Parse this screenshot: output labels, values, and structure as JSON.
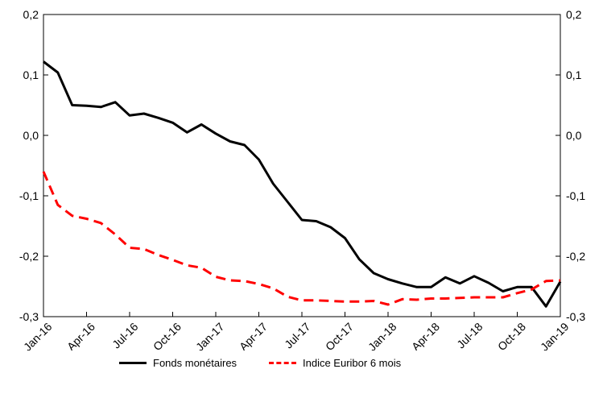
{
  "chart_data": {
    "type": "line",
    "x": [
      "Jan-16",
      "Feb-16",
      "Mar-16",
      "Apr-16",
      "May-16",
      "Jun-16",
      "Jul-16",
      "Aug-16",
      "Sep-16",
      "Oct-16",
      "Nov-16",
      "Dec-16",
      "Jan-17",
      "Feb-17",
      "Mar-17",
      "Apr-17",
      "May-17",
      "Jun-17",
      "Jul-17",
      "Aug-17",
      "Sep-17",
      "Oct-17",
      "Nov-17",
      "Dec-17",
      "Jan-18",
      "Feb-18",
      "Mar-18",
      "Apr-18",
      "May-18",
      "Jun-18",
      "Jul-18",
      "Aug-18",
      "Sep-18",
      "Oct-18",
      "Nov-18",
      "Dec-18",
      "Jan-19"
    ],
    "xticks": [
      "Jan-16",
      "Apr-16",
      "Jul-16",
      "Oct-16",
      "Jan-17",
      "Apr-17",
      "Jul-17",
      "Oct-17",
      "Jan-18",
      "Apr-18",
      "Jul-18",
      "Oct-18",
      "Jan-19"
    ],
    "yticks": [
      "0,2",
      "0,1",
      "0,0",
      "-0,1",
      "-0,2",
      "-0,3"
    ],
    "ylim": [
      -0.3,
      0.2
    ],
    "series": [
      {
        "name": "Fonds monétaires",
        "color": "#000000",
        "style": "solid",
        "values": [
          0.122,
          0.104,
          0.05,
          0.049,
          0.047,
          0.055,
          0.033,
          0.036,
          0.029,
          0.021,
          0.005,
          0.018,
          0.003,
          -0.01,
          -0.016,
          -0.04,
          -0.08,
          -0.11,
          -0.14,
          -0.142,
          -0.152,
          -0.17,
          -0.205,
          -0.228,
          -0.238,
          -0.245,
          -0.251,
          -0.251,
          -0.235,
          -0.245,
          -0.233,
          -0.244,
          -0.258,
          -0.251,
          -0.251,
          -0.283,
          -0.242
        ]
      },
      {
        "name": "Indice Euribor 6 mois",
        "color": "#ff0000",
        "style": "dashed",
        "values": [
          -0.06,
          -0.115,
          -0.133,
          -0.138,
          -0.145,
          -0.164,
          -0.186,
          -0.188,
          -0.198,
          -0.206,
          -0.215,
          -0.219,
          -0.234,
          -0.24,
          -0.241,
          -0.246,
          -0.253,
          -0.267,
          -0.273,
          -0.273,
          -0.274,
          -0.275,
          -0.275,
          -0.274,
          -0.28,
          -0.271,
          -0.272,
          -0.27,
          -0.27,
          -0.269,
          -0.268,
          -0.268,
          -0.268,
          -0.261,
          -0.255,
          -0.241,
          -0.24
        ]
      }
    ],
    "legend_position": "bottom",
    "grid": false
  }
}
